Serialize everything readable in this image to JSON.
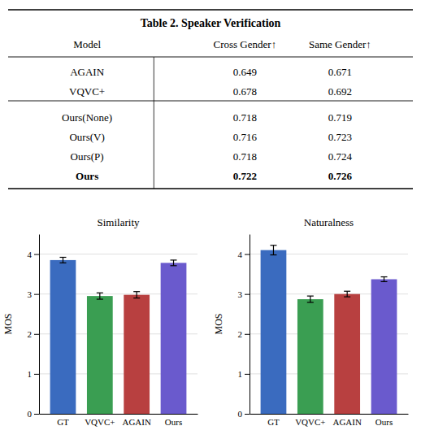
{
  "chart_data": [
    {
      "type": "table",
      "title": "Table 2. Speaker Verification",
      "columns": [
        "Model",
        "Cross Gender↑",
        "Same Gender↑"
      ],
      "rows": [
        [
          "AGAIN",
          "0.649",
          "0.671"
        ],
        [
          "VQVC+",
          "0.678",
          "0.692"
        ],
        [
          "Ours(None)",
          "0.718",
          "0.719"
        ],
        [
          "Ours(V)",
          "0.716",
          "0.723"
        ],
        [
          "Ours(P)",
          "0.718",
          "0.724"
        ],
        [
          "Ours",
          "0.722",
          "0.726"
        ]
      ]
    },
    {
      "type": "bar",
      "title": "Similarity",
      "ylabel": "MOS",
      "categories": [
        "GT",
        "VQVC+",
        "AGAIN",
        "Ours"
      ],
      "values": [
        3.85,
        2.95,
        2.98,
        3.78
      ],
      "errors": [
        0.07,
        0.08,
        0.08,
        0.07
      ],
      "colors": [
        "#3a6bbf",
        "#3a9e52",
        "#b84040",
        "#6a5acd"
      ],
      "ylim": [
        0,
        4.5
      ],
      "yticks": [
        0,
        1,
        2,
        3,
        4
      ],
      "grid": true
    },
    {
      "type": "bar",
      "title": "Naturalness",
      "ylabel": "MOS",
      "categories": [
        "GT",
        "VQVC+",
        "AGAIN",
        "Ours"
      ],
      "values": [
        4.1,
        2.87,
        3.0,
        3.37
      ],
      "errors": [
        0.12,
        0.08,
        0.07,
        0.06
      ],
      "colors": [
        "#3a6bbf",
        "#3a9e52",
        "#b84040",
        "#6a5acd"
      ],
      "ylim": [
        0,
        4.5
      ],
      "yticks": [
        0,
        1,
        2,
        3,
        4
      ],
      "grid": true
    }
  ]
}
